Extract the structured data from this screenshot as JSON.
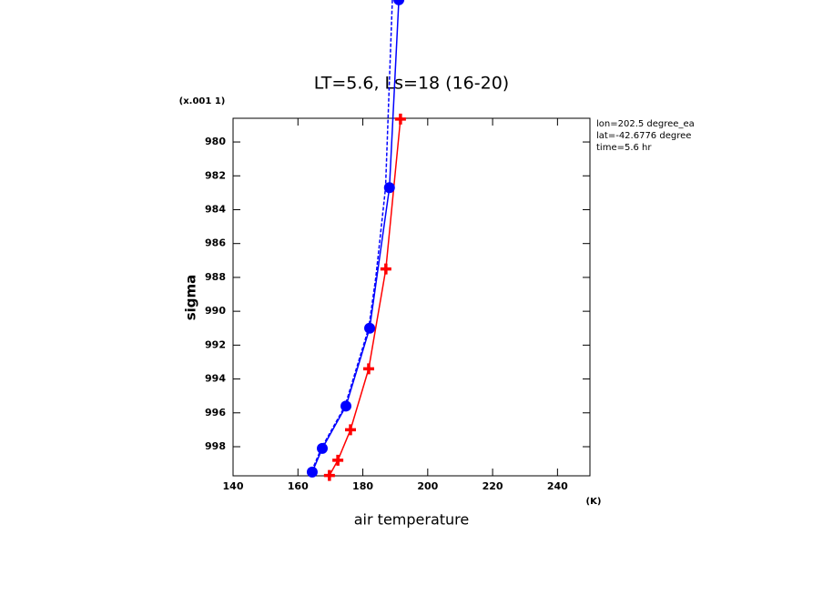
{
  "chart_data": {
    "type": "line",
    "title": "LT=5.6, Ls=18 (16-20)",
    "y_scale_note": "(x.001 1)",
    "x_unit": "(K)",
    "xlabel": "air temperature",
    "ylabel": "sigma",
    "annotations": [
      "lon=202.5 degree_ea",
      "lat=-42.6776 degree",
      "time=5.6 hr"
    ],
    "xlim": [
      140,
      250
    ],
    "xticks": [
      140,
      160,
      180,
      200,
      220,
      240
    ],
    "ylim": [
      978.6,
      999.72
    ],
    "y_reversed": true,
    "yticks": [
      980,
      982,
      984,
      986,
      988,
      990,
      992,
      994,
      996,
      998
    ],
    "series": [
      {
        "color": "#ff0000",
        "marker": "plus",
        "dash": false,
        "x": [
          191.6,
          187.1,
          181.8,
          176.2,
          172.3,
          169.7
        ],
        "values": [
          978.65,
          987.5,
          993.4,
          997.0,
          998.8,
          999.7
        ]
      },
      {
        "color": "#0000ff",
        "marker": "circle",
        "dash": false,
        "x": [
          191.1,
          188.2,
          182.1,
          174.8,
          167.5,
          164.4
        ],
        "values": [
          971.6,
          982.7,
          991.0,
          995.6,
          998.1,
          999.5
        ]
      },
      {
        "color": "#0000ff",
        "marker": null,
        "dash": true,
        "x": [
          189.1,
          187.0,
          184.0,
          181.8,
          174.5,
          167.2,
          164.1
        ],
        "values": [
          971.6,
          982.7,
          988.0,
          991.0,
          995.6,
          998.1,
          999.5
        ]
      }
    ]
  }
}
